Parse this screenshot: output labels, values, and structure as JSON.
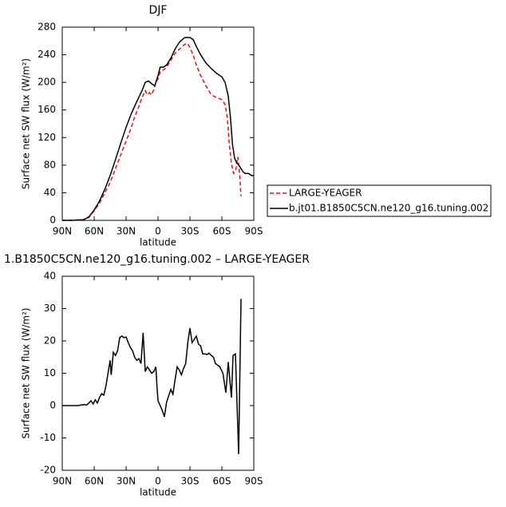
{
  "chart_data": [
    {
      "type": "line",
      "title": "DJF",
      "x_label": "latitude",
      "y_label": "Surface net SW flux (W/m²)",
      "xlim": [
        90,
        -90
      ],
      "xticks": [
        {
          "value": 90,
          "label": "90N"
        },
        {
          "value": 60,
          "label": "60N"
        },
        {
          "value": 30,
          "label": "30N"
        },
        0,
        {
          "value": -30,
          "label": "30S"
        },
        {
          "value": -60,
          "label": "60S"
        },
        {
          "value": -90,
          "label": "90S"
        }
      ],
      "ylim": [
        0,
        280
      ],
      "yticks": [
        0,
        40,
        80,
        120,
        160,
        200,
        240,
        280
      ],
      "legend": "outside-right",
      "series": [
        {
          "name": "LARGE-YEAGER",
          "color": "#e8121a",
          "dashed": true,
          "x": [
            90,
            70,
            65,
            60,
            55,
            50,
            45,
            40,
            35,
            30,
            25,
            22,
            18,
            15,
            12,
            10,
            8,
            6,
            4,
            2,
            0,
            -2,
            -5,
            -8,
            -12,
            -16,
            -20,
            -25,
            -28,
            -30,
            -33,
            -36,
            -40,
            -45,
            -50,
            -55,
            -60,
            -63,
            -65,
            -67,
            -69,
            -71,
            -73,
            -75,
            -76,
            -77,
            -78
          ],
          "values": [
            0,
            1,
            4,
            14,
            25,
            40,
            55,
            75,
            95,
            115,
            135,
            150,
            165,
            178,
            188,
            182,
            185,
            182,
            190,
            200,
            205,
            215,
            218,
            222,
            232,
            242,
            248,
            255,
            256,
            250,
            240,
            225,
            210,
            195,
            182,
            178,
            175,
            168,
            150,
            110,
            82,
            68,
            72,
            92,
            78,
            60,
            35
          ]
        },
        {
          "name": "b.jt01.B1850C5CN.ne120_g16.tuning.002",
          "color": "#000000",
          "dashed": false,
          "x": [
            90,
            80,
            70,
            65,
            60,
            55,
            50,
            45,
            40,
            35,
            30,
            25,
            20,
            15,
            12,
            9,
            6,
            3,
            0,
            -2,
            -5,
            -8,
            -12,
            -16,
            -20,
            -25,
            -30,
            -33,
            -36,
            -40,
            -45,
            -50,
            -55,
            -60,
            -63,
            -66,
            -68,
            -70,
            -72,
            -74,
            -76,
            -78,
            -80,
            -82,
            -85,
            -88,
            -90
          ],
          "values": [
            0,
            0,
            1,
            5,
            15,
            28,
            45,
            65,
            88,
            112,
            135,
            155,
            172,
            188,
            200,
            202,
            198,
            195,
            210,
            222,
            222,
            225,
            235,
            248,
            258,
            265,
            265,
            262,
            252,
            240,
            228,
            220,
            213,
            208,
            200,
            180,
            150,
            110,
            90,
            83,
            80,
            75,
            70,
            68,
            68,
            65,
            65
          ]
        }
      ]
    },
    {
      "type": "line",
      "title": "1.B1850C5CN.ne120_g16.tuning.002 – LARGE-YEAGER",
      "x_label": "latitude",
      "y_label": "Surface net SW flux (W/m²)",
      "xlim": [
        90,
        -90
      ],
      "xticks": [
        {
          "value": 90,
          "label": "90N"
        },
        {
          "value": 60,
          "label": "60N"
        },
        {
          "value": 30,
          "label": "30N"
        },
        0,
        {
          "value": -30,
          "label": "30S"
        },
        {
          "value": -60,
          "label": "60S"
        },
        {
          "value": -90,
          "label": "90S"
        }
      ],
      "ylim": [
        -20,
        40
      ],
      "yticks": [
        -20,
        -10,
        0,
        10,
        20,
        30,
        40
      ],
      "series": [
        {
          "color": "#000000",
          "dashed": false,
          "x": [
            90,
            80,
            75,
            70,
            67,
            65,
            63,
            61,
            59,
            57,
            55,
            53,
            51,
            49,
            47,
            45,
            44,
            42,
            40,
            38,
            36,
            34,
            32,
            30,
            28,
            26,
            24,
            22,
            20,
            18,
            16,
            14,
            12,
            10,
            8,
            6,
            4,
            2,
            1,
            0,
            -2,
            -4,
            -6,
            -8,
            -10,
            -12,
            -14,
            -16,
            -18,
            -20,
            -22,
            -24,
            -26,
            -28,
            -30,
            -32,
            -34,
            -36,
            -38,
            -40,
            -42,
            -44,
            -46,
            -48,
            -50,
            -52,
            -54,
            -58,
            -61,
            -63.75,
            -66,
            -69,
            -70.5,
            -72.75,
            -75.75,
            -78
          ],
          "values": [
            0,
            0,
            0,
            0.3,
            0.2,
            0.8,
            1.5,
            0.5,
            1.8,
            0.8,
            2.5,
            3.7,
            3.2,
            6,
            10,
            14,
            9.5,
            16.5,
            15.5,
            17,
            21,
            21.5,
            21,
            21.2,
            19.5,
            18,
            17,
            15,
            14,
            14.5,
            13,
            22.5,
            10.5,
            12,
            11,
            10,
            10.5,
            12,
            6,
            1.5,
            0,
            -1.5,
            -3.5,
            1,
            3,
            5,
            3.5,
            8,
            12,
            11,
            9.5,
            11.5,
            13,
            19.5,
            24,
            19.5,
            20.5,
            21.5,
            19,
            18.5,
            16,
            16,
            15.8,
            16.2,
            15.5,
            15,
            13,
            12,
            10,
            4,
            13.5,
            2.5,
            15.5,
            16,
            -15,
            33
          ]
        }
      ]
    }
  ]
}
